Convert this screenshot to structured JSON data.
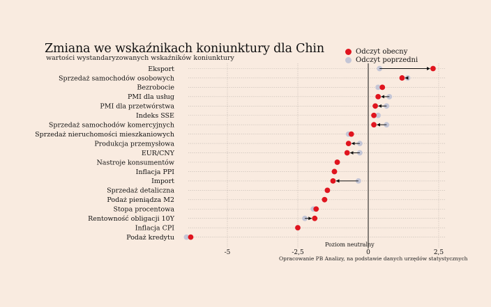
{
  "chart_data": {
    "type": "scatter",
    "title": "Zmiana we wskaźnikach koniunktury dla Chin",
    "subtitle": "wartości wystandaryzowanych wskaźników koniunktury",
    "legend": {
      "placement": "top-right",
      "entries": [
        {
          "name": "Odczyt obecny",
          "color": "#e0141e"
        },
        {
          "name": "Odczyt poprzedni",
          "color": "#c4c6d6"
        }
      ]
    },
    "xlim": [
      -6.5,
      2.6
    ],
    "xticks": [
      {
        "value": -5,
        "label": "-5"
      },
      {
        "value": -2.5,
        "label": "-2,5"
      },
      {
        "value": 0,
        "label": "0"
      },
      {
        "value": 2.5,
        "label": "2,5"
      }
    ],
    "grid": true,
    "zero_line_label": "Poziom neutralny",
    "categories": [
      "Eksport",
      "Sprzedaż samochodów osobowych",
      "Bezrobocie",
      "PMI dla usług",
      "PMI dla przetwórstwa",
      "Indeks SSE",
      "Sprzedaż samochodów komercyjnych",
      "Sprzedaż nieruchomości mieszkaniowych",
      "Produkcja przemysłowa",
      "EUR/CNY",
      "Nastroje konsumentów",
      "Inflacja PPI",
      "Import",
      "Sprzedaż detaliczna",
      "Podaż pieniądza M2",
      "Stopa procentowa",
      "Rentowność obligacji 10Y",
      "Inflacja CPI",
      "Podaż kredytu"
    ],
    "series": [
      {
        "name": "Odczyt obecny",
        "color": "#e0141e",
        "values": [
          2.3,
          1.2,
          0.5,
          0.35,
          0.25,
          0.2,
          0.2,
          -0.6,
          -0.7,
          -0.75,
          -1.1,
          -1.2,
          -1.25,
          -1.45,
          -1.55,
          -1.85,
          -1.9,
          -2.5,
          -6.3
        ]
      },
      {
        "name": "Odczyt poprzedni",
        "color": "#c4c6d6",
        "values": [
          0.4,
          1.4,
          0.35,
          0.75,
          0.65,
          0.35,
          0.65,
          -0.7,
          -0.3,
          -0.3,
          -1.1,
          -1.2,
          -0.35,
          -1.45,
          -1.55,
          -1.95,
          -2.25,
          -2.5,
          -6.45
        ]
      }
    ],
    "source": "Opracowanie PB Analizy, na podstawie danych urzędów statystycznych"
  }
}
